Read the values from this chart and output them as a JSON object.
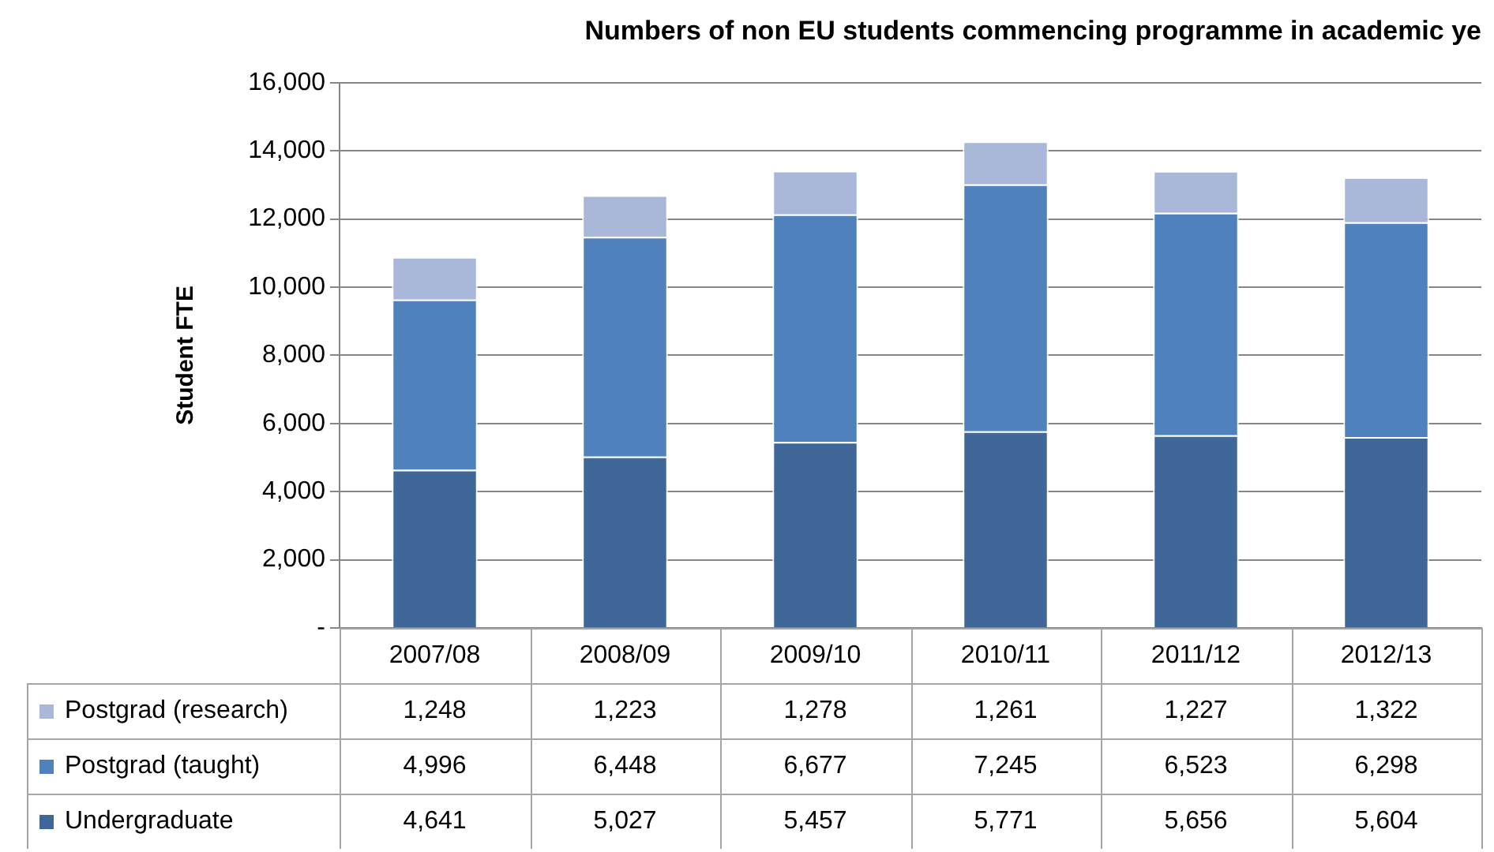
{
  "chart_data": {
    "type": "bar",
    "title": "Numbers of non EU students commencing programme in academic ye",
    "ylabel": "Student FTE",
    "stacked": true,
    "categories": [
      "2007/08",
      "2008/09",
      "2009/10",
      "2010/11",
      "2011/12",
      "2012/13"
    ],
    "series": [
      {
        "name": "Undergraduate",
        "color": "#3f6797",
        "values": [
          4641,
          5027,
          5457,
          5771,
          5656,
          5604
        ],
        "value_labels": [
          "4,641",
          "5,027",
          "5,457",
          "5,771",
          "5,656",
          "5,604"
        ]
      },
      {
        "name": "Postgrad (taught)",
        "color": "#4f81bd",
        "values": [
          4996,
          6448,
          6677,
          7245,
          6523,
          6298
        ],
        "value_labels": [
          "4,996",
          "6,448",
          "6,677",
          "7,245",
          "6,523",
          "6,298"
        ]
      },
      {
        "name": "Postgrad (research)",
        "color": "#a9b8d9",
        "values": [
          1248,
          1223,
          1278,
          1261,
          1227,
          1322
        ],
        "value_labels": [
          "1,248",
          "1,223",
          "1,278",
          "1,261",
          "1,227",
          "1,322"
        ]
      }
    ],
    "ylim": [
      0,
      16000
    ],
    "yticks": [
      {
        "value": 0,
        "label": "-"
      },
      {
        "value": 2000,
        "label": "2,000"
      },
      {
        "value": 4000,
        "label": "4,000"
      },
      {
        "value": 6000,
        "label": "6,000"
      },
      {
        "value": 8000,
        "label": "8,000"
      },
      {
        "value": 10000,
        "label": "10,000"
      },
      {
        "value": 12000,
        "label": "12,000"
      },
      {
        "value": 14000,
        "label": "14,000"
      },
      {
        "value": 16000,
        "label": "16,000"
      }
    ],
    "grid": "y",
    "legend": "bottom"
  }
}
